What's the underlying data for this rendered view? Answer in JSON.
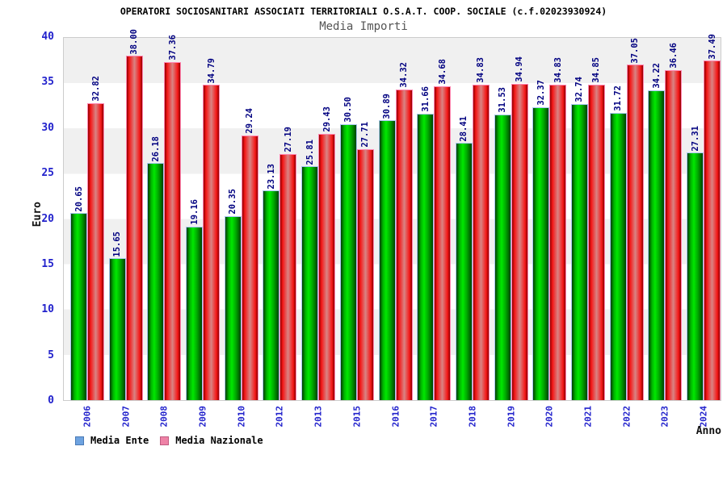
{
  "title": "OPERATORI SOCIOSANITARI ASSOCIATI TERRITORIALI O.S.A.T. COOP. SOCIALE (c.f.02023930924)",
  "subtitle": "Media Importi",
  "axes": {
    "y_label": "Euro",
    "x_label": "Anno",
    "y_ticks": [
      40,
      35,
      30,
      25,
      20,
      15,
      10,
      5,
      0
    ],
    "grid_bands": "alternating gray/white every 5 units"
  },
  "legend": {
    "position": "bottom-left",
    "items": [
      {
        "label": "Media Ente",
        "color": "#6ea3e0"
      },
      {
        "label": "Media Nazionale",
        "color": "#ee82a6"
      }
    ]
  },
  "chart_data": {
    "type": "bar",
    "title": "OPERATORI SOCIOSANITARI ASSOCIATI TERRITORIALI O.S.A.T. COOP. SOCIALE (c.f.02023930924)",
    "subtitle": "Media Importi",
    "xlabel": "Anno",
    "ylabel": "Euro",
    "ylim": [
      0,
      40
    ],
    "categories": [
      "2006",
      "2007",
      "2008",
      "2009",
      "2010",
      "2012",
      "2013",
      "2015",
      "2016",
      "2017",
      "2018",
      "2019",
      "2020",
      "2021",
      "2022",
      "2023",
      "2024"
    ],
    "series": [
      {
        "name": "Media Ente",
        "bar_color": "#00cc00",
        "values": [
          20.65,
          15.65,
          26.18,
          19.16,
          20.35,
          23.13,
          25.81,
          30.5,
          30.89,
          31.66,
          28.41,
          31.53,
          32.37,
          32.74,
          31.72,
          34.22,
          27.31
        ]
      },
      {
        "name": "Media Nazionale",
        "bar_color": "#ee2222",
        "values": [
          32.82,
          38.0,
          37.36,
          34.79,
          29.24,
          27.19,
          29.43,
          27.71,
          34.32,
          34.68,
          34.83,
          34.94,
          34.83,
          34.85,
          37.05,
          36.46,
          37.49
        ]
      }
    ],
    "value_label_color": "#000080",
    "tick_label_color": "#2222cc",
    "legend_position": "bottom"
  }
}
